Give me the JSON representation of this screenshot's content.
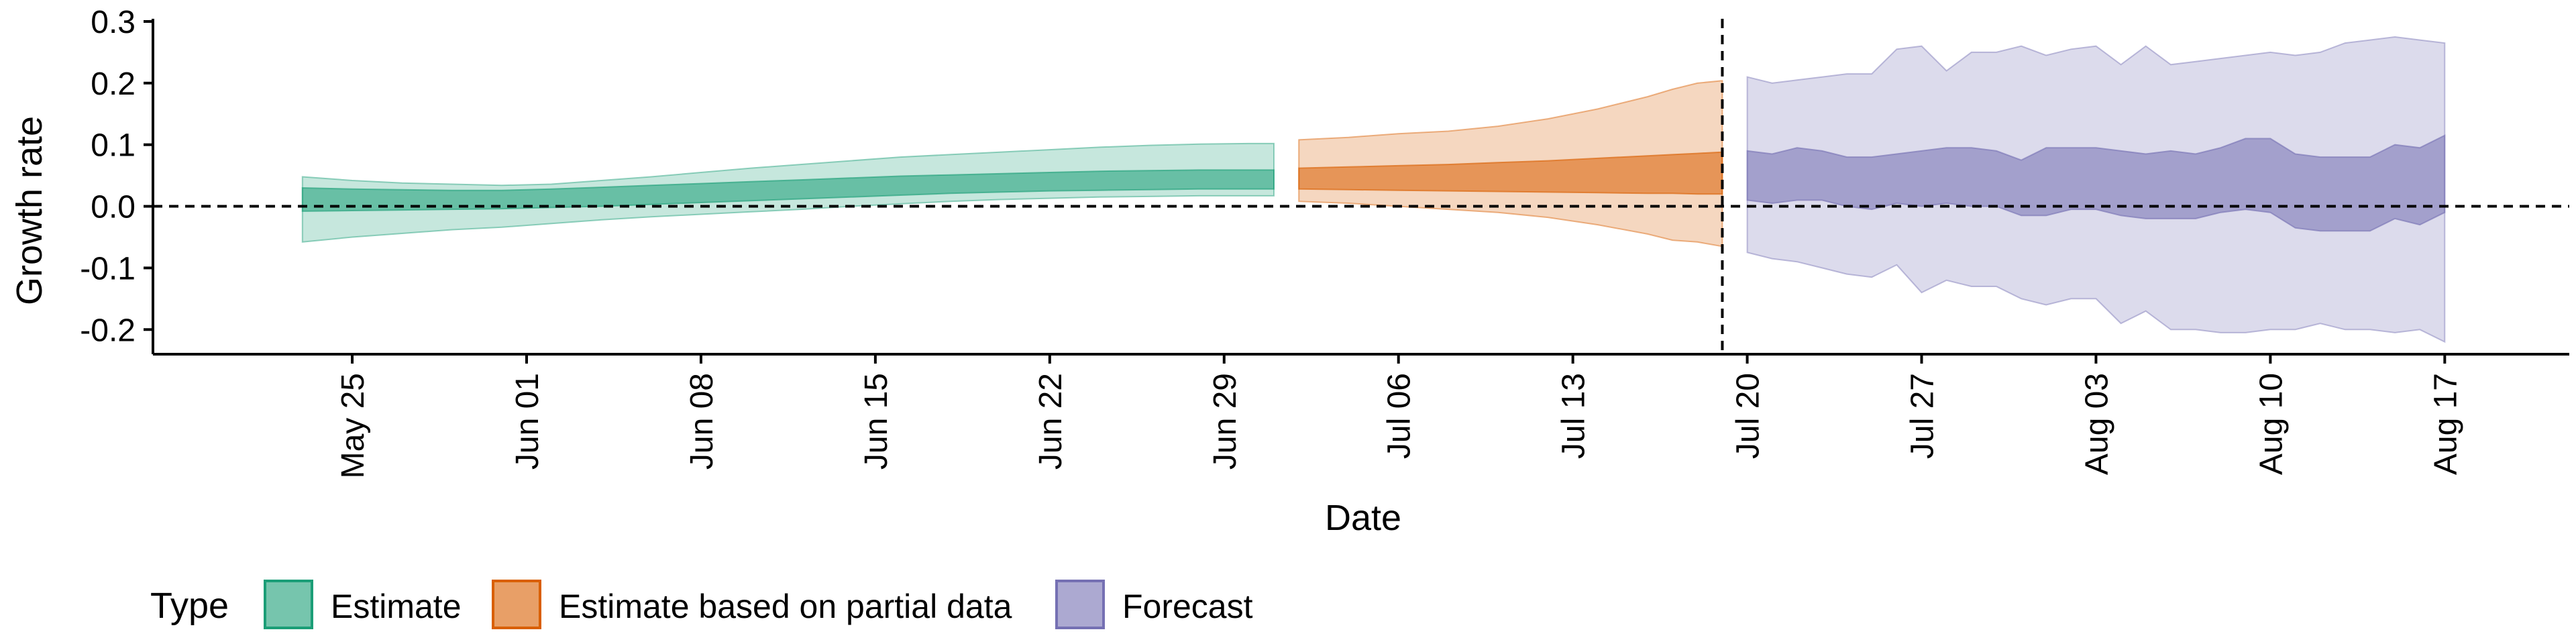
{
  "chart_data": {
    "type": "area",
    "title": "",
    "xlabel": "Date",
    "ylabel": "Growth rate",
    "xlim": [
      "2020-05-17",
      "2020-08-22"
    ],
    "ylim": [
      -0.24,
      0.3
    ],
    "yticks": [
      -0.2,
      -0.1,
      0.0,
      0.1,
      0.2,
      0.3
    ],
    "ytick_labels": [
      "-0.2",
      "-0.1",
      "0.0",
      "0.1",
      "0.2",
      "0.3"
    ],
    "xticks": [
      "2020-05-25",
      "2020-06-01",
      "2020-06-08",
      "2020-06-15",
      "2020-06-22",
      "2020-06-29",
      "2020-07-06",
      "2020-07-13",
      "2020-07-20",
      "2020-07-27",
      "2020-08-03",
      "2020-08-10",
      "2020-08-17"
    ],
    "xtick_labels": [
      "May 25",
      "Jun 01",
      "Jun 08",
      "Jun 15",
      "Jun 22",
      "Jun 29",
      "Jul 06",
      "Jul 13",
      "Jul 20",
      "Jul 27",
      "Aug 03",
      "Aug 10",
      "Aug 17"
    ],
    "hline": 0.0,
    "vline": "2020-07-19",
    "grid": false,
    "legend": {
      "title": "Type",
      "placement": "bottom",
      "entries": [
        "Estimate",
        "Estimate based on partial data",
        "Forecast"
      ]
    },
    "series": [
      {
        "name": "Estimate",
        "color": "#1b9e77",
        "x": [
          "2020-05-23",
          "2020-05-25",
          "2020-05-27",
          "2020-05-29",
          "2020-05-31",
          "2020-06-02",
          "2020-06-04",
          "2020-06-06",
          "2020-06-08",
          "2020-06-10",
          "2020-06-12",
          "2020-06-14",
          "2020-06-16",
          "2020-06-18",
          "2020-06-20",
          "2020-06-22",
          "2020-06-24",
          "2020-06-26",
          "2020-06-28",
          "2020-06-30",
          "2020-07-01"
        ],
        "lower90": [
          -0.058,
          -0.05,
          -0.044,
          -0.038,
          -0.034,
          -0.028,
          -0.022,
          -0.017,
          -0.013,
          -0.009,
          -0.005,
          0.0,
          0.004,
          0.008,
          0.011,
          0.013,
          0.015,
          0.016,
          0.017,
          0.017,
          0.017
        ],
        "upper90": [
          0.048,
          0.042,
          0.038,
          0.036,
          0.034,
          0.036,
          0.042,
          0.048,
          0.055,
          0.062,
          0.068,
          0.074,
          0.08,
          0.084,
          0.088,
          0.092,
          0.096,
          0.099,
          0.101,
          0.102,
          0.102
        ],
        "lower50": [
          -0.008,
          -0.007,
          -0.006,
          -0.005,
          -0.004,
          -0.002,
          0.0,
          0.003,
          0.006,
          0.009,
          0.012,
          0.015,
          0.018,
          0.021,
          0.023,
          0.025,
          0.026,
          0.027,
          0.028,
          0.028,
          0.028
        ],
        "upper50": [
          0.03,
          0.028,
          0.027,
          0.026,
          0.026,
          0.028,
          0.031,
          0.034,
          0.037,
          0.04,
          0.043,
          0.046,
          0.049,
          0.051,
          0.053,
          0.055,
          0.057,
          0.058,
          0.059,
          0.059,
          0.059
        ]
      },
      {
        "name": "Estimate based on partial data",
        "color": "#d95f02",
        "x": [
          "2020-07-02",
          "2020-07-04",
          "2020-07-06",
          "2020-07-08",
          "2020-07-10",
          "2020-07-12",
          "2020-07-14",
          "2020-07-16",
          "2020-07-17",
          "2020-07-18",
          "2020-07-19"
        ],
        "lower90": [
          0.008,
          0.005,
          0.0,
          -0.005,
          -0.01,
          -0.018,
          -0.03,
          -0.045,
          -0.055,
          -0.058,
          -0.065
        ],
        "upper90": [
          0.108,
          0.112,
          0.118,
          0.122,
          0.13,
          0.142,
          0.158,
          0.178,
          0.19,
          0.2,
          0.204
        ],
        "lower50": [
          0.028,
          0.027,
          0.026,
          0.025,
          0.024,
          0.023,
          0.022,
          0.021,
          0.021,
          0.02,
          0.02
        ],
        "upper50": [
          0.062,
          0.064,
          0.066,
          0.068,
          0.071,
          0.074,
          0.078,
          0.082,
          0.084,
          0.086,
          0.088
        ]
      },
      {
        "name": "Forecast",
        "color": "#7570b3",
        "x": [
          "2020-07-20",
          "2020-07-21",
          "2020-07-22",
          "2020-07-23",
          "2020-07-24",
          "2020-07-25",
          "2020-07-26",
          "2020-07-27",
          "2020-07-28",
          "2020-07-29",
          "2020-07-30",
          "2020-07-31",
          "2020-08-01",
          "2020-08-02",
          "2020-08-03",
          "2020-08-04",
          "2020-08-05",
          "2020-08-06",
          "2020-08-07",
          "2020-08-08",
          "2020-08-09",
          "2020-08-10",
          "2020-08-11",
          "2020-08-12",
          "2020-08-13",
          "2020-08-14",
          "2020-08-15",
          "2020-08-16",
          "2020-08-17"
        ],
        "lower90": [
          -0.075,
          -0.085,
          -0.09,
          -0.1,
          -0.11,
          -0.115,
          -0.095,
          -0.14,
          -0.12,
          -0.13,
          -0.13,
          -0.15,
          -0.16,
          -0.15,
          -0.15,
          -0.19,
          -0.17,
          -0.2,
          -0.2,
          -0.205,
          -0.205,
          -0.2,
          -0.2,
          -0.19,
          -0.2,
          -0.2,
          -0.205,
          -0.2,
          -0.22
        ],
        "upper90": [
          0.21,
          0.2,
          0.205,
          0.21,
          0.215,
          0.215,
          0.255,
          0.26,
          0.22,
          0.25,
          0.25,
          0.26,
          0.245,
          0.255,
          0.26,
          0.23,
          0.26,
          0.23,
          0.235,
          0.24,
          0.245,
          0.25,
          0.245,
          0.25,
          0.265,
          0.27,
          0.275,
          0.27,
          0.265
        ],
        "lower50": [
          0.01,
          0.005,
          0.01,
          0.01,
          0.0,
          -0.005,
          0.005,
          0.0,
          0.005,
          0.0,
          0.0,
          -0.015,
          -0.015,
          -0.005,
          -0.005,
          -0.015,
          -0.02,
          -0.02,
          -0.02,
          -0.01,
          -0.005,
          -0.01,
          -0.035,
          -0.04,
          -0.04,
          -0.04,
          -0.02,
          -0.03,
          -0.01
        ],
        "upper50": [
          0.09,
          0.085,
          0.095,
          0.09,
          0.08,
          0.08,
          0.085,
          0.09,
          0.095,
          0.095,
          0.09,
          0.075,
          0.095,
          0.095,
          0.095,
          0.09,
          0.085,
          0.09,
          0.085,
          0.095,
          0.11,
          0.11,
          0.085,
          0.08,
          0.08,
          0.08,
          0.1,
          0.095,
          0.115
        ]
      }
    ]
  }
}
